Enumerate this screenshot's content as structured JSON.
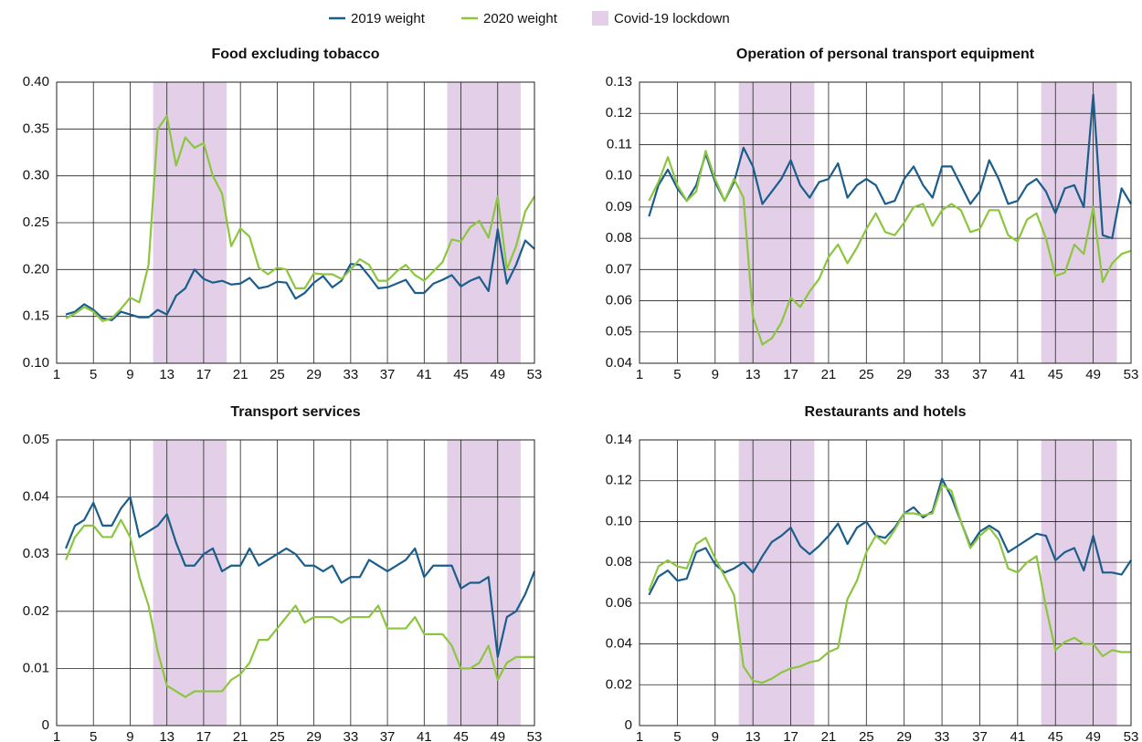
{
  "chart_data": [
    {
      "type": "line",
      "title": "Food excluding tobacco",
      "x": [
        2,
        3,
        4,
        5,
        6,
        7,
        8,
        9,
        10,
        11,
        12,
        13,
        14,
        15,
        16,
        17,
        18,
        19,
        20,
        21,
        22,
        23,
        24,
        25,
        26,
        27,
        28,
        29,
        30,
        31,
        32,
        33,
        34,
        35,
        36,
        37,
        38,
        39,
        40,
        41,
        42,
        43,
        44,
        45,
        46,
        47,
        48,
        49,
        50,
        51,
        52,
        53
      ],
      "series": [
        {
          "name": "2019 weight",
          "color": "#1b5e8c",
          "values": [
            0.152,
            0.155,
            0.163,
            0.157,
            0.148,
            0.146,
            0.155,
            0.152,
            0.149,
            0.149,
            0.157,
            0.152,
            0.172,
            0.18,
            0.2,
            0.19,
            0.186,
            0.188,
            0.184,
            0.185,
            0.191,
            0.18,
            0.182,
            0.187,
            0.186,
            0.169,
            0.175,
            0.186,
            0.193,
            0.181,
            0.188,
            0.206,
            0.205,
            0.193,
            0.18,
            0.181,
            0.185,
            0.189,
            0.175,
            0.175,
            0.185,
            0.189,
            0.194,
            0.182,
            0.188,
            0.192,
            0.177,
            0.243,
            0.185,
            0.205,
            0.231,
            0.222
          ]
        },
        {
          "name": "2020 weight",
          "color": "#8cc63f",
          "values": [
            0.148,
            0.153,
            0.16,
            0.155,
            0.145,
            0.148,
            0.158,
            0.17,
            0.165,
            0.205,
            0.35,
            0.364,
            0.311,
            0.341,
            0.33,
            0.335,
            0.3,
            0.281,
            0.225,
            0.244,
            0.235,
            0.202,
            0.195,
            0.202,
            0.2,
            0.18,
            0.18,
            0.196,
            0.195,
            0.195,
            0.19,
            0.2,
            0.211,
            0.205,
            0.188,
            0.188,
            0.198,
            0.205,
            0.194,
            0.188,
            0.198,
            0.208,
            0.232,
            0.23,
            0.245,
            0.252,
            0.234,
            0.278,
            0.2,
            0.225,
            0.262,
            0.278
          ]
        }
      ],
      "shading": {
        "name": "Covid-19 lockdown",
        "color": "#e3d0e8",
        "ranges": [
          [
            11.5,
            19.5
          ],
          [
            43.5,
            51.5
          ]
        ]
      },
      "xlim": [
        1,
        53
      ],
      "xticks": [
        1,
        5,
        9,
        13,
        17,
        21,
        25,
        29,
        33,
        37,
        41,
        45,
        49,
        53
      ],
      "ylim": [
        0.1,
        0.4
      ],
      "yticks": [
        {
          "value": 0.1,
          "label": "0.10"
        },
        0.15,
        {
          "value": 0.2,
          "label": "0.20"
        },
        0.25,
        {
          "value": 0.3,
          "label": "0.30"
        },
        0.35,
        {
          "value": 0.4,
          "label": "0.40"
        }
      ],
      "grid": true
    },
    {
      "type": "line",
      "title": "Operation of personal transport equipment",
      "x": [
        2,
        3,
        4,
        5,
        6,
        7,
        8,
        9,
        10,
        11,
        12,
        13,
        14,
        15,
        16,
        17,
        18,
        19,
        20,
        21,
        22,
        23,
        24,
        25,
        26,
        27,
        28,
        29,
        30,
        31,
        32,
        33,
        34,
        35,
        36,
        37,
        38,
        39,
        40,
        41,
        42,
        43,
        44,
        45,
        46,
        47,
        48,
        49,
        50,
        51,
        52,
        53
      ],
      "series": [
        {
          "name": "2019 weight",
          "color": "#1b5e8c",
          "values": [
            0.087,
            0.097,
            0.102,
            0.096,
            0.092,
            0.097,
            0.107,
            0.098,
            0.092,
            0.098,
            0.109,
            0.103,
            0.091,
            0.095,
            0.099,
            0.105,
            0.097,
            0.093,
            0.098,
            0.099,
            0.104,
            0.093,
            0.097,
            0.099,
            0.097,
            0.091,
            0.092,
            0.099,
            0.103,
            0.097,
            0.093,
            0.103,
            0.103,
            0.097,
            0.091,
            0.095,
            0.105,
            0.099,
            0.091,
            0.092,
            0.097,
            0.099,
            0.095,
            0.088,
            0.096,
            0.097,
            0.09,
            0.126,
            0.081,
            0.08,
            0.096,
            0.091
          ]
        },
        {
          "name": "2020 weight",
          "color": "#8cc63f",
          "values": [
            0.092,
            0.098,
            0.106,
            0.097,
            0.092,
            0.095,
            0.108,
            0.099,
            0.092,
            0.099,
            0.093,
            0.055,
            0.046,
            0.048,
            0.053,
            0.061,
            0.058,
            0.063,
            0.067,
            0.074,
            0.078,
            0.072,
            0.077,
            0.083,
            0.088,
            0.082,
            0.081,
            0.085,
            0.09,
            0.091,
            0.084,
            0.089,
            0.091,
            0.089,
            0.082,
            0.083,
            0.089,
            0.089,
            0.081,
            0.079,
            0.086,
            0.088,
            0.08,
            0.068,
            0.069,
            0.078,
            0.075,
            0.09,
            0.066,
            0.072,
            0.075,
            0.076
          ]
        }
      ],
      "shading": {
        "name": "Covid-19 lockdown",
        "color": "#e3d0e8",
        "ranges": [
          [
            11.5,
            19.5
          ],
          [
            43.5,
            51.5
          ]
        ]
      },
      "xlim": [
        1,
        53
      ],
      "xticks": [
        1,
        5,
        9,
        13,
        17,
        21,
        25,
        29,
        33,
        37,
        41,
        45,
        49,
        53
      ],
      "ylim": [
        0.04,
        0.13
      ],
      "yticks": [
        0.04,
        0.05,
        0.06,
        0.07,
        0.08,
        0.09,
        {
          "value": 0.1,
          "label": "0.10"
        },
        0.11,
        0.12,
        0.13
      ],
      "grid": true
    },
    {
      "type": "line",
      "title": "Transport services",
      "x": [
        2,
        3,
        4,
        5,
        6,
        7,
        8,
        9,
        10,
        11,
        12,
        13,
        14,
        15,
        16,
        17,
        18,
        19,
        20,
        21,
        22,
        23,
        24,
        25,
        26,
        27,
        28,
        29,
        30,
        31,
        32,
        33,
        34,
        35,
        36,
        37,
        38,
        39,
        40,
        41,
        42,
        43,
        44,
        45,
        46,
        47,
        48,
        49,
        50,
        51,
        52,
        53
      ],
      "series": [
        {
          "name": "2019 weight",
          "color": "#1b5e8c",
          "values": [
            0.031,
            0.035,
            0.036,
            0.039,
            0.035,
            0.035,
            0.038,
            0.04,
            0.033,
            0.034,
            0.035,
            0.037,
            0.032,
            0.028,
            0.028,
            0.03,
            0.031,
            0.027,
            0.028,
            0.028,
            0.031,
            0.028,
            0.029,
            0.03,
            0.031,
            0.03,
            0.028,
            0.028,
            0.027,
            0.028,
            0.025,
            0.026,
            0.026,
            0.029,
            0.028,
            0.027,
            0.028,
            0.029,
            0.031,
            0.026,
            0.028,
            0.028,
            0.028,
            0.024,
            0.025,
            0.025,
            0.026,
            0.012,
            0.019,
            0.02,
            0.023,
            0.027
          ]
        },
        {
          "name": "2020 weight",
          "color": "#8cc63f",
          "values": [
            0.029,
            0.033,
            0.035,
            0.035,
            0.033,
            0.033,
            0.036,
            0.033,
            0.026,
            0.021,
            0.013,
            0.007,
            0.006,
            0.005,
            0.006,
            0.006,
            0.006,
            0.006,
            0.008,
            0.009,
            0.011,
            0.015,
            0.015,
            0.017,
            0.019,
            0.021,
            0.018,
            0.019,
            0.019,
            0.019,
            0.018,
            0.019,
            0.019,
            0.019,
            0.021,
            0.017,
            0.017,
            0.017,
            0.019,
            0.016,
            0.016,
            0.016,
            0.014,
            0.01,
            0.01,
            0.011,
            0.014,
            0.008,
            0.011,
            0.012,
            0.012,
            0.012
          ]
        }
      ],
      "shading": {
        "name": "Covid-19 lockdown",
        "color": "#e3d0e8",
        "ranges": [
          [
            11.5,
            19.5
          ],
          [
            43.5,
            51.5
          ]
        ]
      },
      "xlim": [
        1,
        53
      ],
      "xticks": [
        1,
        5,
        9,
        13,
        17,
        21,
        25,
        29,
        33,
        37,
        41,
        45,
        49,
        53
      ],
      "ylim": [
        0,
        0.05
      ],
      "yticks": [
        0,
        0.01,
        0.02,
        0.03,
        0.04,
        0.05
      ],
      "grid": true
    },
    {
      "type": "line",
      "title": "Restaurants and hotels",
      "x": [
        2,
        3,
        4,
        5,
        6,
        7,
        8,
        9,
        10,
        11,
        12,
        13,
        14,
        15,
        16,
        17,
        18,
        19,
        20,
        21,
        22,
        23,
        24,
        25,
        26,
        27,
        28,
        29,
        30,
        31,
        32,
        33,
        34,
        35,
        36,
        37,
        38,
        39,
        40,
        41,
        42,
        43,
        44,
        45,
        46,
        47,
        48,
        49,
        50,
        51,
        52,
        53
      ],
      "series": [
        {
          "name": "2019 weight",
          "color": "#1b5e8c",
          "values": [
            0.064,
            0.073,
            0.076,
            0.071,
            0.072,
            0.085,
            0.087,
            0.079,
            0.075,
            0.077,
            0.08,
            0.075,
            0.083,
            0.09,
            0.093,
            0.097,
            0.088,
            0.084,
            0.088,
            0.093,
            0.099,
            0.089,
            0.097,
            0.1,
            0.093,
            0.092,
            0.097,
            0.104,
            0.107,
            0.102,
            0.105,
            0.121,
            0.112,
            0.1,
            0.088,
            0.095,
            0.098,
            0.095,
            0.085,
            0.088,
            0.091,
            0.094,
            0.093,
            0.081,
            0.085,
            0.087,
            0.076,
            0.093,
            0.075,
            0.075,
            0.074,
            0.081
          ]
        },
        {
          "name": "2020 weight",
          "color": "#8cc63f",
          "values": [
            0.066,
            0.078,
            0.081,
            0.078,
            0.077,
            0.089,
            0.092,
            0.082,
            0.073,
            0.064,
            0.029,
            0.022,
            0.021,
            0.023,
            0.026,
            0.028,
            0.029,
            0.031,
            0.032,
            0.036,
            0.038,
            0.062,
            0.071,
            0.085,
            0.093,
            0.089,
            0.096,
            0.104,
            0.104,
            0.103,
            0.104,
            0.118,
            0.115,
            0.1,
            0.087,
            0.093,
            0.097,
            0.091,
            0.077,
            0.075,
            0.08,
            0.083,
            0.058,
            0.037,
            0.041,
            0.043,
            0.04,
            0.04,
            0.034,
            0.037,
            0.036,
            0.036
          ]
        }
      ],
      "shading": {
        "name": "Covid-19 lockdown",
        "color": "#e3d0e8",
        "ranges": [
          [
            11.5,
            19.5
          ],
          [
            43.5,
            51.5
          ]
        ]
      },
      "xlim": [
        1,
        53
      ],
      "xticks": [
        1,
        5,
        9,
        13,
        17,
        21,
        25,
        29,
        33,
        37,
        41,
        45,
        49,
        53
      ],
      "ylim": [
        0,
        0.14
      ],
      "yticks": [
        0,
        0.02,
        0.04,
        0.06,
        0.08,
        {
          "value": 0.1,
          "label": "0.10"
        },
        0.12,
        0.14
      ],
      "grid": true
    }
  ]
}
